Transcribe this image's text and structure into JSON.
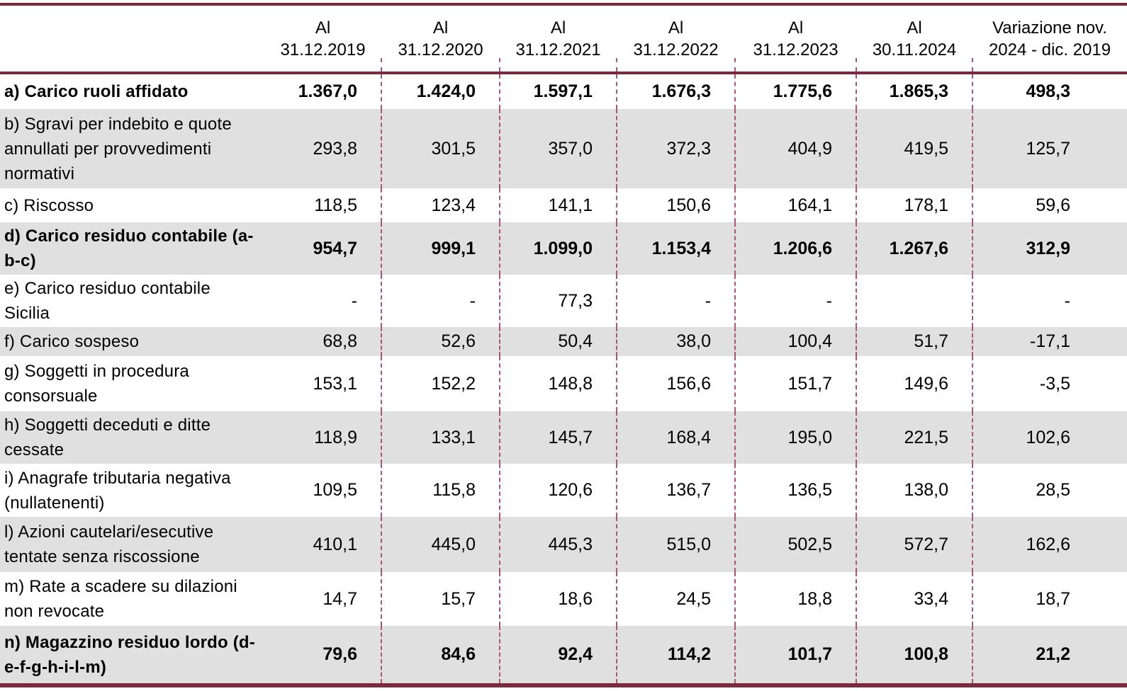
{
  "chart_data": {
    "type": "table",
    "columns": [
      {
        "line1": "Al",
        "line2": "31.12.2019",
        "full": "Al 31.12.2019"
      },
      {
        "line1": "Al",
        "line2": "31.12.2020",
        "full": "Al 31.12.2020"
      },
      {
        "line1": "Al",
        "line2": "31.12.2021",
        "full": "Al 31.12.2021"
      },
      {
        "line1": "Al",
        "line2": "31.12.2022",
        "full": "Al 31.12.2022"
      },
      {
        "line1": "Al",
        "line2": "31.12.2023",
        "full": "Al 31.12.2023"
      },
      {
        "line1": "Al",
        "line2": "30.11.2024",
        "full": "Al 30.11.2024"
      },
      {
        "line1": "Variazione nov.",
        "line2": "2024 - dic. 2019",
        "full": "Variazione nov. 2024 - dic. 2019"
      }
    ],
    "corner_label": "",
    "rows": [
      {
        "label": "a) Carico ruoli affidato",
        "bold": true,
        "values": [
          "1.367,0",
          "1.424,0",
          "1.597,1",
          "1.676,3",
          "1.775,6",
          "1.865,3",
          "498,3"
        ]
      },
      {
        "label": "b) Sgravi per indebito e quote annullati per provvedimenti normativi",
        "bold": false,
        "values": [
          "293,8",
          "301,5",
          "357,0",
          "372,3",
          "404,9",
          "419,5",
          "125,7"
        ]
      },
      {
        "label": "c) Riscosso",
        "bold": false,
        "values": [
          "118,5",
          "123,4",
          "141,1",
          "150,6",
          "164,1",
          "178,1",
          "59,6"
        ]
      },
      {
        "label": "d) Carico residuo contabile (a-b-c)",
        "bold": true,
        "values": [
          "954,7",
          "999,1",
          "1.099,0",
          "1.153,4",
          "1.206,6",
          "1.267,6",
          "312,9"
        ]
      },
      {
        "label": "e) Carico residuo contabile Sicilia",
        "bold": false,
        "values": [
          "-",
          "-",
          "77,3",
          "-",
          "-",
          "",
          "-"
        ]
      },
      {
        "label": "f) Carico sospeso",
        "bold": false,
        "values": [
          "68,8",
          "52,6",
          "50,4",
          "38,0",
          "100,4",
          "51,7",
          "-17,1"
        ]
      },
      {
        "label": "g) Soggetti in procedura consorsuale",
        "bold": false,
        "values": [
          "153,1",
          "152,2",
          "148,8",
          "156,6",
          "151,7",
          "149,6",
          "-3,5"
        ]
      },
      {
        "label": "h) Soggetti deceduti e ditte cessate",
        "bold": false,
        "values": [
          "118,9",
          "133,1",
          "145,7",
          "168,4",
          "195,0",
          "221,5",
          "102,6"
        ]
      },
      {
        "label": "i) Anagrafe tributaria negativa (nullatenenti)",
        "bold": false,
        "values": [
          "109,5",
          "115,8",
          "120,6",
          "136,7",
          "136,5",
          "138,0",
          "28,5"
        ]
      },
      {
        "label": "l) Azioni cautelari/esecutive tentate senza riscossione",
        "bold": false,
        "values": [
          "410,1",
          "445,0",
          "445,3",
          "515,0",
          "502,5",
          "572,7",
          "162,6"
        ]
      },
      {
        "label": "m) Rate a scadere su dilazioni non revocate",
        "bold": false,
        "values": [
          "14,7",
          "15,7",
          "18,6",
          "24,5",
          "18,8",
          "33,4",
          "18,7"
        ]
      },
      {
        "label": "n) Magazzino residuo lordo (d-e-f-g-h-i-l-m)",
        "bold": true,
        "values": [
          "79,6",
          "84,6",
          "92,4",
          "114,2",
          "101,7",
          "100,8",
          "21,2"
        ]
      }
    ]
  },
  "colors": {
    "rule_maroon": "#7B2A3D",
    "divider_dashed_pink": "#A65A6D",
    "stripe_gray": "#E0E0E0",
    "text": "#000000",
    "background": "#FFFFFF"
  }
}
